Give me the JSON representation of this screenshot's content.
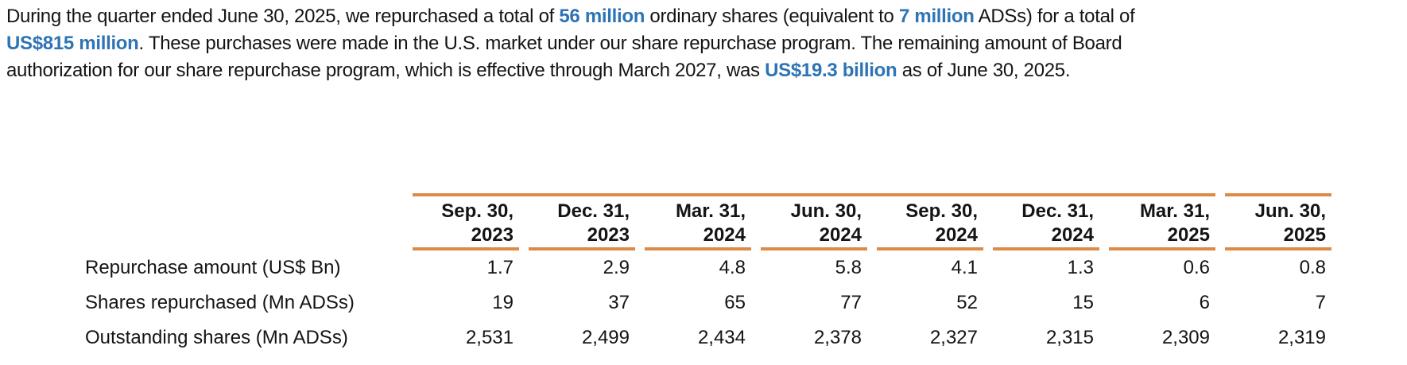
{
  "colors": {
    "highlight_blue": "#2E74B5",
    "rule_orange": "#DB8A47",
    "body_text": "#141414"
  },
  "paragraph": {
    "lines": [
      {
        "segments": [
          {
            "text": "During the quarter ended June 30, 2025, we repurchased a total of "
          },
          {
            "text": "56 million",
            "highlight": true
          },
          {
            "text": " ordinary shares (equivalent to "
          },
          {
            "text": "7 million",
            "highlight": true
          },
          {
            "text": " ADSs) for a total of"
          }
        ]
      },
      {
        "segments": [
          {
            "text": "US$815 million",
            "highlight": true
          },
          {
            "text": ". These purchases were made in the U.S. market under our share repurchase program. The remaining amount of Board"
          }
        ]
      },
      {
        "segments": [
          {
            "text": "authorization for our share repurchase program, which is effective through March 2027, was "
          },
          {
            "text": "US$19.3 billion",
            "highlight": true
          },
          {
            "text": " as of June 30, 2025."
          }
        ]
      }
    ]
  },
  "table": {
    "columns": [
      {
        "header": "Sep. 30,\n2023"
      },
      {
        "header": "Dec. 31,\n2023"
      },
      {
        "header": "Mar. 31,\n2024"
      },
      {
        "header": "Jun. 30,\n2024"
      },
      {
        "header": "Sep. 30,\n2024"
      },
      {
        "header": "Dec. 31,\n2024"
      },
      {
        "header": "Mar. 31,\n2025"
      },
      {
        "header": "Jun. 30,\n2025"
      }
    ],
    "rows": [
      {
        "label": "Repurchase amount (US$ Bn)",
        "values": [
          "1.7",
          "2.9",
          "4.8",
          "5.8",
          "4.1",
          "1.3",
          "0.6",
          "0.8"
        ]
      },
      {
        "label": "Shares repurchased (Mn ADSs)",
        "values": [
          "19",
          "37",
          "65",
          "77",
          "52",
          "15",
          "6",
          "7"
        ]
      },
      {
        "label": "Outstanding shares (Mn ADSs)",
        "values": [
          "2,531",
          "2,499",
          "2,434",
          "2,378",
          "2,327",
          "2,315",
          "2,309",
          "2,319"
        ]
      }
    ]
  }
}
